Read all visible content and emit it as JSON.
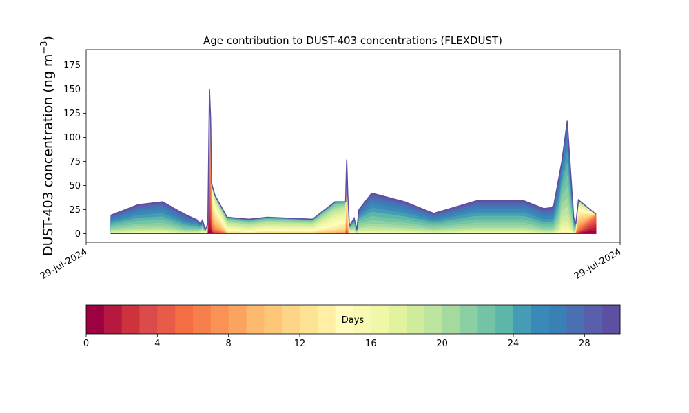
{
  "chart_data": {
    "type": "area",
    "title": "Age contribution to DUST-403 concentrations (FLEXDUST)",
    "ylabel": "DUST-403 concentration (ng m$^{-3}$)",
    "ylabel_main": "DUST-403 concentration (ng m",
    "ylabel_sup": "−3",
    "ylabel_close": ")",
    "xlabel": "",
    "ylim": [
      -9,
      191
    ],
    "y_ticks": [
      0,
      25,
      50,
      75,
      100,
      125,
      150,
      175
    ],
    "x_tick_labels": [
      "29-Jul-2024",
      "29-Jul-2024"
    ],
    "x_relative_range": [
      0,
      1
    ],
    "stacking": "cumulative by age (0 to 30 days)",
    "x": [
      0.046,
      0.097,
      0.143,
      0.185,
      0.209,
      0.214,
      0.218,
      0.223,
      0.228,
      0.231,
      0.233,
      0.235,
      0.241,
      0.264,
      0.305,
      0.339,
      0.424,
      0.466,
      0.486,
      0.488,
      0.49,
      0.493,
      0.502,
      0.507,
      0.511,
      0.535,
      0.597,
      0.651,
      0.731,
      0.82,
      0.857,
      0.872,
      0.876,
      0.886,
      0.891,
      0.901,
      0.913,
      0.917,
      0.922,
      0.955
    ],
    "totals": [
      19,
      30,
      33,
      20,
      14,
      10,
      14,
      4,
      10,
      150,
      120,
      52,
      40,
      17,
      15,
      17,
      15,
      33,
      33,
      77,
      40,
      8,
      16,
      4,
      25,
      42,
      33,
      21,
      34,
      34,
      26,
      27,
      30,
      60,
      75,
      117,
      17,
      10,
      35,
      20
    ],
    "age_mean_days": [
      24,
      24,
      24,
      25,
      24,
      23,
      23,
      20,
      18,
      6,
      7,
      11,
      13,
      18,
      19,
      18,
      18,
      17,
      16,
      12,
      15,
      20,
      22,
      24,
      23,
      24,
      24,
      24,
      24,
      24,
      25,
      25,
      25,
      24,
      22,
      23,
      24,
      22,
      12,
      2
    ],
    "age_spread_days": [
      4,
      4,
      4,
      4,
      4,
      5,
      5,
      4,
      5,
      4,
      4,
      5,
      5,
      4,
      4,
      4,
      4,
      4,
      4,
      4,
      4,
      4,
      4,
      4,
      4,
      4,
      4,
      4,
      4,
      4,
      4,
      4,
      4,
      4,
      4,
      4,
      4,
      4,
      5,
      3
    ],
    "colorbar": {
      "label": "Days",
      "min": 0,
      "max": 30,
      "bins": 30,
      "ticks": [
        0,
        4,
        8,
        12,
        16,
        20,
        24,
        28
      ],
      "colormap": "Spectral",
      "colors": [
        "#9e0142",
        "#b5193f",
        "#cc333d",
        "#dc4a4c",
        "#e85b48",
        "#f46d43",
        "#f67f4b",
        "#f99254",
        "#fca45f",
        "#fdb96e",
        "#fdc777",
        "#fed586",
        "#fee395",
        "#feefa5",
        "#fffcbe",
        "#f7fbb2",
        "#eef8a6",
        "#e1f39e",
        "#cfec9d",
        "#bde5a0",
        "#a5da9f",
        "#8ccfa4",
        "#73c4a6",
        "#5cb7a9",
        "#479cb5",
        "#3a89b9",
        "#3a7fb6",
        "#4a6fb2",
        "#5a5fad",
        "#5e4fa2"
      ]
    }
  }
}
